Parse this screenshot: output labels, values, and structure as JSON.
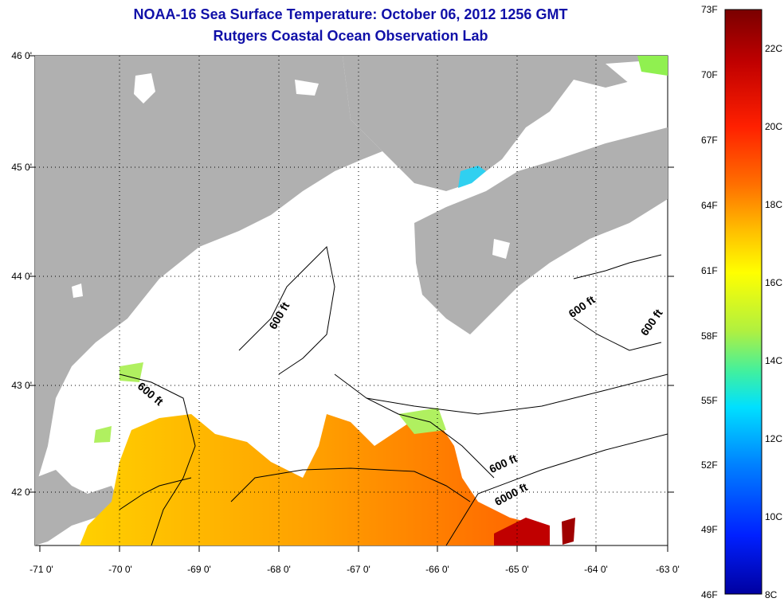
{
  "header": {
    "title": "NOAA-16 Sea Surface Temperature:  October 06, 2012 1256 GMT",
    "subtitle": "Rutgers Coastal Ocean Observation Lab"
  },
  "map": {
    "lat_labels": [
      "46 0'",
      "45 0'",
      "44 0'",
      "43 0'",
      "42 0'"
    ],
    "lon_labels": [
      "-71 0'",
      "-70 0'",
      "-69 0'",
      "-68 0'",
      "-67 0'",
      "-66 0'",
      "-65 0'",
      "-64 0'",
      "-63 0'"
    ],
    "contour_labels": [
      "600 ft",
      "600 ft",
      "600 ft",
      "600 ft",
      "600 ft",
      "6000 ft"
    ],
    "colors": {
      "land": "#b0b0b0",
      "no_data": "#ffffff",
      "contour": "#000000",
      "grid": "#000000"
    }
  },
  "colorbar": {
    "fahrenheit": [
      "73F",
      "70F",
      "67F",
      "64F",
      "61F",
      "58F",
      "55F",
      "52F",
      "49F",
      "46F"
    ],
    "celsius": [
      "22C",
      "20C",
      "18C",
      "16C",
      "14C",
      "12C",
      "10C",
      "8C"
    ],
    "gradient": [
      "#7a0000",
      "#c00000",
      "#ff2000",
      "#ff7000",
      "#ffc000",
      "#ffff00",
      "#b0f040",
      "#40f0a0",
      "#00e0ff",
      "#0080ff",
      "#0020ff",
      "#0000a0"
    ]
  }
}
